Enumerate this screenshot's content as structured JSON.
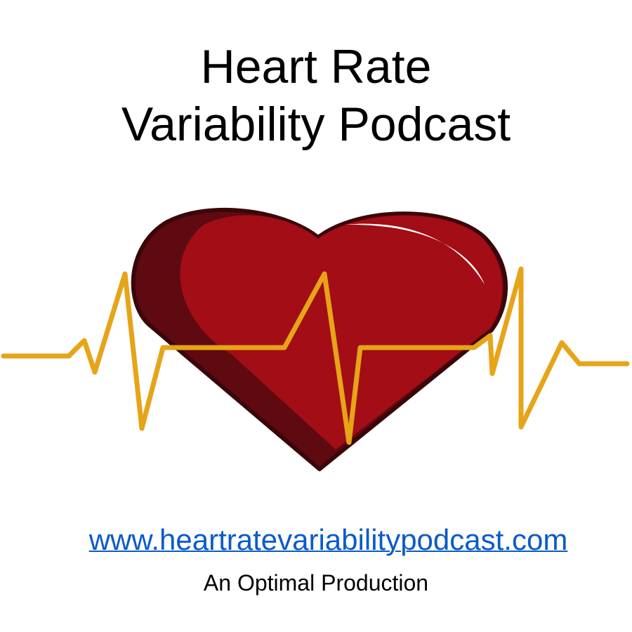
{
  "title": {
    "line1": "Heart Rate",
    "line2": "Variability Podcast"
  },
  "artwork": {
    "icons": [
      "heart-icon",
      "heartbeat-line-icon"
    ],
    "colors": {
      "heart": "#a30d16",
      "heart_shadow": "#5e0a10",
      "outline": "#3a060a",
      "pulse": "#e6a418"
    }
  },
  "website": {
    "url": "www.heartratevariabilitypodcast.com",
    "color": "#0b5bc9"
  },
  "credit": "An Optimal Production"
}
